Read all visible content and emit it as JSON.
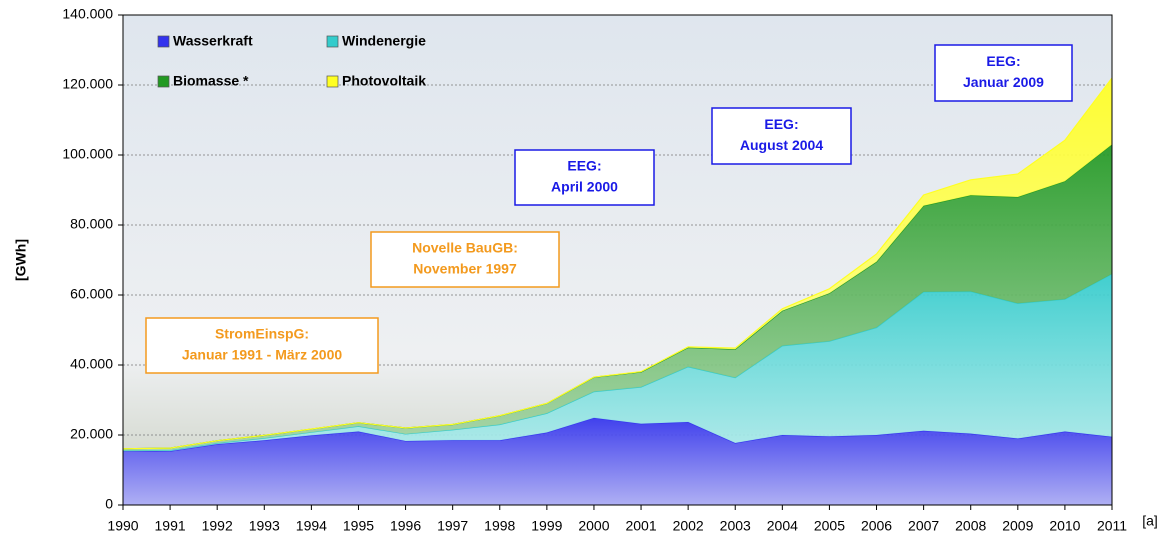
{
  "chart_data": {
    "type": "stacked-area",
    "y_label": "[GWh]",
    "x_label": "[a]",
    "categories": [
      "1990",
      "1991",
      "1992",
      "1993",
      "1994",
      "1995",
      "1996",
      "1997",
      "1998",
      "1999",
      "2000",
      "2001",
      "2002",
      "2003",
      "2004",
      "2005",
      "2006",
      "2007",
      "2008",
      "2009",
      "2010",
      "2011"
    ],
    "series": [
      {
        "name": "Wasserkraft",
        "color": "#3333ee",
        "values": [
          15500,
          15400,
          17400,
          18500,
          19900,
          21000,
          18300,
          18500,
          18500,
          20700,
          24900,
          23200,
          23700,
          17700,
          20000,
          19600,
          20000,
          21200,
          20400,
          19000,
          21000,
          19500
        ]
      },
      {
        "name": "Windenergie",
        "color": "#33cccc",
        "values": [
          70,
          250,
          280,
          600,
          900,
          1500,
          2000,
          3000,
          4500,
          5500,
          7500,
          10500,
          15800,
          18700,
          25500,
          27200,
          30700,
          39700,
          40600,
          38600,
          37800,
          46500
        ]
      },
      {
        "name": "Biomasse *",
        "color": "#229922",
        "values": [
          500,
          600,
          700,
          800,
          900,
          1000,
          1700,
          1500,
          2500,
          2800,
          4100,
          4300,
          5500,
          8100,
          10000,
          13700,
          18800,
          24600,
          27500,
          30400,
          33700,
          37000
        ]
      },
      {
        "name": "Photovoltaik",
        "color": "#ffff22",
        "values": [
          1,
          2,
          3,
          6,
          8,
          11,
          16,
          26,
          32,
          42,
          64,
          116,
          188,
          313,
          557,
          1282,
          2220,
          3075,
          4420,
          6583,
          11729,
          19000
        ]
      }
    ],
    "ylim": [
      0,
      140000
    ],
    "yticks": [
      0,
      {
        "value": 20000,
        "label": "20.000"
      },
      {
        "value": 40000,
        "label": "40.000"
      },
      {
        "value": 60000,
        "label": "60.000"
      },
      {
        "value": 80000,
        "label": "80.000"
      },
      {
        "value": 100000,
        "label": "100.000"
      },
      {
        "value": 120000,
        "label": "120.000"
      },
      {
        "value": 140000,
        "label": "140.000"
      }
    ],
    "grid": true,
    "legend": "top-left",
    "annotations": [
      {
        "lines": [
          "StromEinspG:",
          "Januar 1991 - März 2000"
        ],
        "color": "#f39a1e"
      },
      {
        "lines": [
          "Novelle BauGB:",
          "November 1997"
        ],
        "color": "#f39a1e"
      },
      {
        "lines": [
          "EEG:",
          "April 2000"
        ],
        "color": "#1a1ae6"
      },
      {
        "lines": [
          "EEG:",
          "August  2004"
        ],
        "color": "#1a1ae6"
      },
      {
        "lines": [
          "EEG:",
          "Januar 2009"
        ],
        "color": "#1a1ae6"
      }
    ]
  }
}
